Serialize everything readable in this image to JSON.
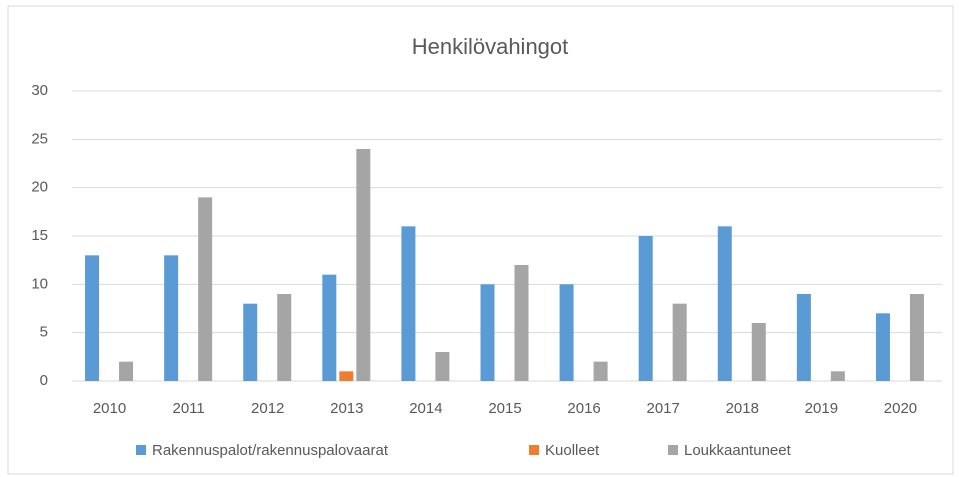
{
  "chart_data": {
    "type": "bar",
    "title": "Henkilövahingot",
    "categories": [
      "2010",
      "2011",
      "2012",
      "2013",
      "2014",
      "2015",
      "2016",
      "2017",
      "2018",
      "2019",
      "2020"
    ],
    "series": [
      {
        "name": "Rakennuspalot/rakennuspalovaarat",
        "color": "#5b9bd5",
        "values": [
          13,
          13,
          8,
          11,
          16,
          10,
          10,
          15,
          16,
          9,
          7
        ]
      },
      {
        "name": "Kuolleet",
        "color": "#ed7d31",
        "values": [
          0,
          0,
          0,
          1,
          0,
          0,
          0,
          0,
          0,
          0,
          0
        ]
      },
      {
        "name": "Loukkaantuneet",
        "color": "#a5a5a5",
        "values": [
          2,
          19,
          9,
          24,
          3,
          12,
          2,
          8,
          6,
          1,
          9
        ]
      }
    ],
    "ylim": [
      0,
      30
    ],
    "yticks": [
      0,
      5,
      10,
      15,
      20,
      25,
      30
    ],
    "grid": true,
    "legend": "bottom"
  }
}
